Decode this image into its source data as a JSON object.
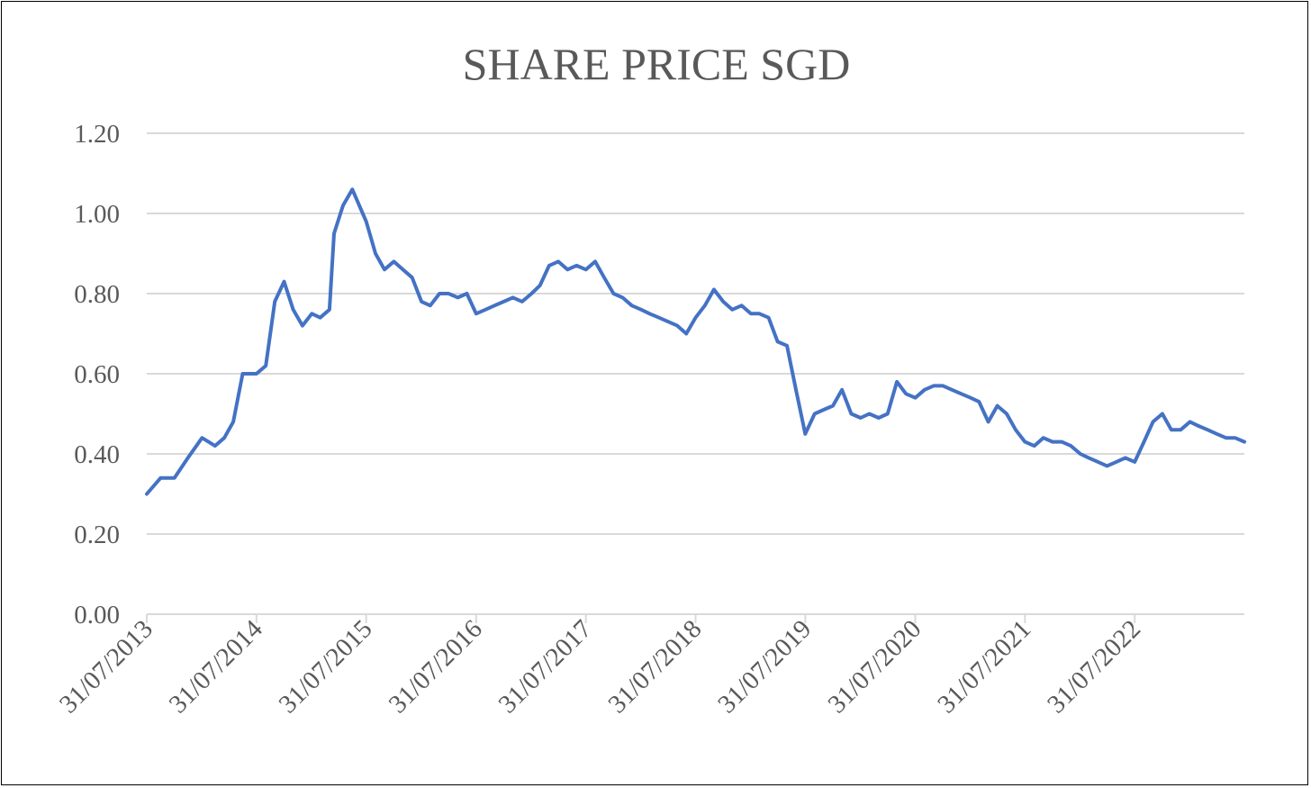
{
  "chart_data": {
    "type": "line",
    "title": "SHARE PRICE SGD",
    "xlabel": "",
    "ylabel": "",
    "ylim": [
      0,
      1.2
    ],
    "xlim": [
      "31/07/2013",
      "31/07/2023"
    ],
    "y_ticks": [
      "0.00",
      "0.20",
      "0.40",
      "0.60",
      "0.80",
      "1.00",
      "1.20"
    ],
    "y_tick_values": [
      0,
      0.2,
      0.4,
      0.6,
      0.8,
      1.0,
      1.2
    ],
    "x_ticks": [
      "31/07/2013",
      "31/07/2014",
      "31/07/2015",
      "31/07/2016",
      "31/07/2017",
      "31/07/2018",
      "31/07/2019",
      "31/07/2020",
      "31/07/2021",
      "31/07/2022"
    ],
    "grid": true,
    "legend": "none",
    "line_color": "#4472c4",
    "series": [
      {
        "x": [
          "31/07/2013",
          "15/09/2013",
          "31/10/2013",
          "15/12/2013",
          "31/01/2014",
          "15/03/2014",
          "15/04/2014",
          "15/05/2014",
          "15/06/2014",
          "31/07/2014",
          "31/08/2014",
          "30/09/2014",
          "31/10/2014",
          "30/11/2014",
          "31/12/2014",
          "31/01/2015",
          "28/02/2015",
          "31/03/2015",
          "15/04/2015",
          "15/05/2015",
          "15/06/2015",
          "31/07/2015",
          "31/08/2015",
          "30/09/2015",
          "31/10/2015",
          "30/11/2015",
          "31/12/2015",
          "31/01/2016",
          "29/02/2016",
          "31/03/2016",
          "30/04/2016",
          "31/05/2016",
          "30/06/2016",
          "31/07/2016",
          "31/08/2016",
          "30/09/2016",
          "31/10/2016",
          "30/11/2016",
          "31/12/2016",
          "31/01/2017",
          "28/02/2017",
          "31/03/2017",
          "30/04/2017",
          "31/05/2017",
          "30/06/2017",
          "31/07/2017",
          "31/08/2017",
          "30/09/2017",
          "31/10/2017",
          "30/11/2017",
          "31/12/2017",
          "31/01/2018",
          "28/02/2018",
          "31/03/2018",
          "30/04/2018",
          "31/05/2018",
          "30/06/2018",
          "31/07/2018",
          "31/08/2018",
          "30/09/2018",
          "31/10/2018",
          "30/11/2018",
          "31/12/2018",
          "31/01/2019",
          "28/02/2019",
          "31/03/2019",
          "30/04/2019",
          "31/05/2019",
          "30/06/2019",
          "31/07/2019",
          "31/08/2019",
          "30/09/2019",
          "31/10/2019",
          "30/11/2019",
          "31/12/2019",
          "31/01/2020",
          "29/02/2020",
          "31/03/2020",
          "30/04/2020",
          "31/05/2020",
          "30/06/2020",
          "31/07/2020",
          "31/08/2020",
          "30/09/2020",
          "31/10/2020",
          "30/11/2020",
          "31/12/2020",
          "31/01/2021",
          "28/02/2021",
          "31/03/2021",
          "30/04/2021",
          "31/05/2021",
          "30/06/2021",
          "31/07/2021",
          "31/08/2021",
          "30/09/2021",
          "31/10/2021",
          "30/11/2021",
          "31/12/2021",
          "31/01/2022",
          "28/02/2022",
          "31/03/2022",
          "30/04/2022",
          "31/05/2022",
          "30/06/2022",
          "31/07/2022",
          "31/08/2022",
          "30/09/2022",
          "31/10/2022",
          "30/11/2022",
          "31/12/2022",
          "31/01/2023",
          "28/02/2023",
          "31/03/2023",
          "30/04/2023",
          "31/05/2023",
          "30/06/2023",
          "31/07/2023"
        ],
        "values": [
          0.3,
          0.34,
          0.34,
          0.39,
          0.44,
          0.42,
          0.44,
          0.48,
          0.6,
          0.6,
          0.62,
          0.78,
          0.83,
          0.76,
          0.72,
          0.75,
          0.74,
          0.76,
          0.95,
          1.02,
          1.06,
          0.98,
          0.9,
          0.86,
          0.88,
          0.86,
          0.84,
          0.78,
          0.77,
          0.8,
          0.8,
          0.79,
          0.8,
          0.75,
          0.76,
          0.77,
          0.78,
          0.79,
          0.78,
          0.8,
          0.82,
          0.87,
          0.88,
          0.86,
          0.87,
          0.86,
          0.88,
          0.84,
          0.8,
          0.79,
          0.77,
          0.76,
          0.75,
          0.74,
          0.73,
          0.72,
          0.7,
          0.74,
          0.77,
          0.81,
          0.78,
          0.76,
          0.77,
          0.75,
          0.75,
          0.74,
          0.68,
          0.67,
          0.56,
          0.45,
          0.5,
          0.51,
          0.52,
          0.56,
          0.5,
          0.49,
          0.5,
          0.49,
          0.5,
          0.58,
          0.55,
          0.54,
          0.56,
          0.57,
          0.57,
          0.56,
          0.55,
          0.54,
          0.53,
          0.48,
          0.52,
          0.5,
          0.46,
          0.43,
          0.42,
          0.44,
          0.43,
          0.43,
          0.42,
          0.4,
          0.39,
          0.38,
          0.37,
          0.38,
          0.39,
          0.38,
          0.43,
          0.48,
          0.5,
          0.46,
          0.46,
          0.48,
          0.47,
          0.46,
          0.45,
          0.44,
          0.44,
          0.43
        ]
      }
    ]
  }
}
